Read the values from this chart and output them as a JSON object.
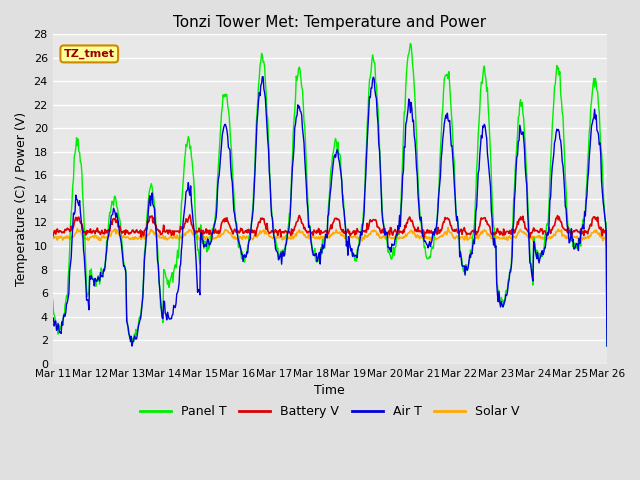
{
  "title": "Tonzi Tower Met: Temperature and Power",
  "ylabel": "Temperature (C) / Power (V)",
  "xlabel": "Time",
  "ylim": [
    0,
    28
  ],
  "yticks": [
    0,
    2,
    4,
    6,
    8,
    10,
    12,
    14,
    16,
    18,
    20,
    22,
    24,
    26,
    28
  ],
  "bg_color": "#e0e0e0",
  "plot_bg_color": "#e8e8e8",
  "grid_color": "#ffffff",
  "legend_label": "TZ_tmet",
  "legend_box_facecolor": "#ffff99",
  "legend_box_edgecolor": "#cc8800",
  "legend_text_color": "#990000",
  "series_colors": {
    "Panel T": "#00ee00",
    "Battery V": "#dd0000",
    "Air T": "#0000dd",
    "Solar V": "#ffaa00"
  },
  "n_days": 15,
  "pts_per_day": 48,
  "x_tick_labels": [
    "Mar 11",
    "Mar 12",
    "Mar 13",
    "Mar 14",
    "Mar 15",
    "Mar 16",
    "Mar 17",
    "Mar 18",
    "Mar 19",
    "Mar 20",
    "Mar 21",
    "Mar 22",
    "Mar 23",
    "Mar 24",
    "Mar 25",
    "Mar 26"
  ]
}
